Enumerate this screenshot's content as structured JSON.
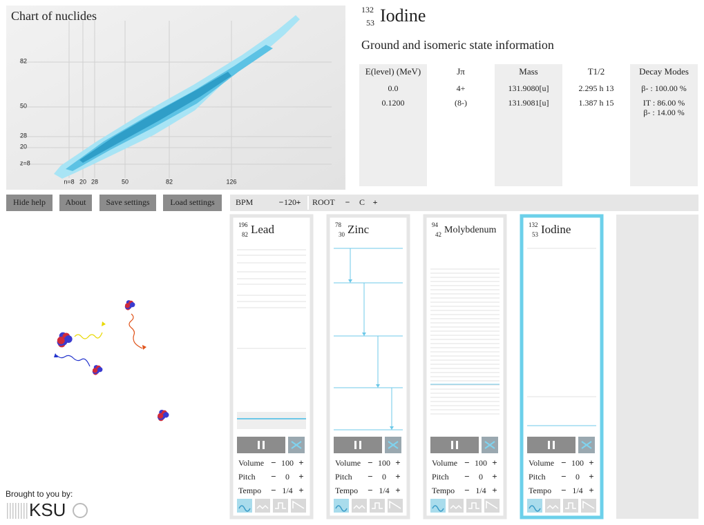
{
  "nuclide_chart": {
    "title": "Chart of nuclides",
    "z_labels": [
      "82",
      "50",
      "28",
      "20",
      "z=8"
    ],
    "n_labels": [
      "n=8",
      "20",
      "28",
      "50",
      "82",
      "126"
    ]
  },
  "nuclide": {
    "mass": "132",
    "z": "53",
    "name": "Iodine"
  },
  "subtitle": "Ground and isomeric state information",
  "table": {
    "columns": [
      "E(level) (MeV)",
      "Jπ",
      "Mass",
      "T1/2",
      "Decay Modes"
    ],
    "rows": [
      [
        "0.0",
        "4+",
        "131.9080[u]",
        "2.295 h 13",
        [
          "β- : 100.00 %"
        ]
      ],
      [
        "0.1200",
        "(8-)",
        "131.9081[u]",
        "1.387 h 15",
        [
          "IT : 86.00 %",
          "β- : 14.00 %"
        ]
      ]
    ]
  },
  "buttons": [
    "Hide help",
    "About",
    "Save settings",
    "Load settings"
  ],
  "toolbar": {
    "bpm_label": "BPM",
    "bpm": "120",
    "root_label": "ROOT",
    "root": "C",
    "minus": "−",
    "plus": "+"
  },
  "instruments": [
    {
      "mass": "196",
      "z": "82",
      "name": "Lead",
      "volume": "100",
      "pitch": "0",
      "tempo": "1/4"
    },
    {
      "mass": "78",
      "z": "30",
      "name": "Zinc",
      "volume": "100",
      "pitch": "0",
      "tempo": "1/4"
    },
    {
      "mass": "94",
      "z": "42",
      "name": "Molybdenum",
      "volume": "100",
      "pitch": "0",
      "tempo": "1/4"
    },
    {
      "mass": "132",
      "z": "53",
      "name": "Iodine",
      "volume": "100",
      "pitch": "0",
      "tempo": "1/4"
    }
  ],
  "control_labels": [
    "Volume",
    "Pitch",
    "Tempo"
  ],
  "credits": {
    "text": "Brought to you by:",
    "logo": "KSU"
  }
}
